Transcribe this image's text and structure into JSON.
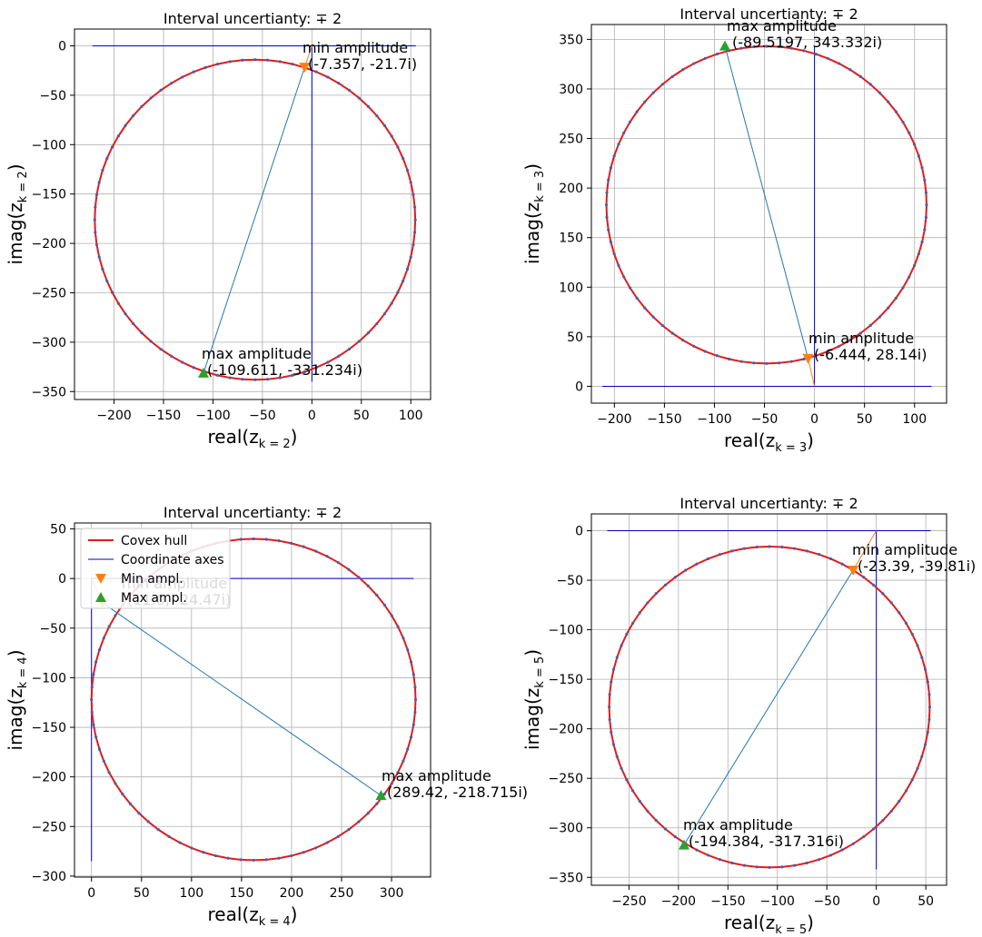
{
  "chart_data": [
    {
      "type": "line",
      "title": "Interval uncertianty: ∓ 2",
      "xlabel": "real(z_{k=2})",
      "xlabel_main": "real(z",
      "xlabel_sub": "k = 2",
      "ylabel_main": "imag(z",
      "ylabel_sub": "k = 2",
      "xlim": [
        -240,
        120
      ],
      "ylim": [
        -358,
        17
      ],
      "xticks": [
        -200,
        -150,
        -100,
        -50,
        0,
        50,
        100
      ],
      "yticks": [
        -350,
        -300,
        -250,
        -200,
        -150,
        -100,
        -50,
        0
      ],
      "circle": {
        "cx": -57.5,
        "cy": -176,
        "r": 162
      },
      "axes": {
        "x_from": -222,
        "x_to": 105,
        "y_from": -340,
        "y_to": 0
      },
      "min_point": {
        "x": -7.357,
        "y": -21.7
      },
      "max_point": {
        "x": -109.611,
        "y": -331.234
      },
      "min_label": [
        "min amplitude",
        "(-7.357, -21.7i)"
      ],
      "max_label": [
        "max amplitude",
        "(-109.611, -331.234i)"
      ],
      "min_label_anchor": {
        "x": -7.357,
        "y": -21.7
      },
      "max_label_anchor": {
        "x": -109.611,
        "y": -331.234
      }
    },
    {
      "type": "line",
      "title": "Interval uncertianty: ∓ 2",
      "xlabel": "real(z_{k=3})",
      "xlabel_main": "real(z",
      "xlabel_sub": "k = 3",
      "ylabel_main": "imag(z",
      "ylabel_sub": "k = 3",
      "xlim": [
        -223,
        132
      ],
      "ylim": [
        -17,
        365
      ],
      "xticks": [
        -200,
        -150,
        -100,
        -50,
        0,
        50,
        100
      ],
      "yticks": [
        0,
        50,
        100,
        150,
        200,
        250,
        300,
        350
      ],
      "circle": {
        "cx": -48,
        "cy": 183,
        "r": 160
      },
      "axes": {
        "x_from": -212,
        "x_to": 117,
        "y_from": 0,
        "y_to": 343
      },
      "min_point": {
        "x": -6.444,
        "y": 28.14
      },
      "max_point": {
        "x": -89.5197,
        "y": 343.332
      },
      "min_label": [
        "min amplitude",
        "(-6.444, 28.14i)"
      ],
      "max_label": [
        "max amplitude",
        "(-89.5197, 343.332i)"
      ],
      "min_label_anchor": {
        "x": -6.444,
        "y": 28.14
      },
      "max_label_anchor": {
        "x": -89.5197,
        "y": 343.332
      }
    },
    {
      "type": "line",
      "title": "Interval uncertianty: ∓ 2",
      "xlabel": "real(z_{k=4})",
      "xlabel_main": "real(z",
      "xlabel_sub": "k = 4",
      "ylabel_main": "imag(z",
      "ylabel_sub": "k = 4",
      "xlim": [
        -17,
        339
      ],
      "ylim": [
        -301,
        56
      ],
      "xticks": [
        0,
        50,
        100,
        150,
        200,
        250,
        300
      ],
      "yticks": [
        -300,
        -250,
        -200,
        -150,
        -100,
        -50,
        0,
        50
      ],
      "circle": {
        "cx": 162,
        "cy": -122,
        "r": 162
      },
      "axes": {
        "x_from": 0,
        "x_to": 322,
        "y_from": -285,
        "y_to": 0
      },
      "min_point": {
        "x": 11,
        "y": -24.47
      },
      "max_point": {
        "x": 289.42,
        "y": -218.715
      },
      "min_label": [
        "min amplitude",
        "(11.0, -24.47i)"
      ],
      "max_label": [
        "max amplitude",
        "(289.42, -218.715i)"
      ],
      "min_label_anchor": {
        "x": 11,
        "y": -24.47
      },
      "max_label_anchor": {
        "x": 289.42,
        "y": -218.715
      },
      "legend": [
        "Covex hull",
        "Coordinate axes",
        "Min ampl.",
        "Max ampl."
      ]
    },
    {
      "type": "line",
      "title": "Interval uncertianty: ∓ 2",
      "xlabel": "real(z_{k=5})",
      "xlabel_main": "real(z",
      "xlabel_sub": "k = 5",
      "ylabel_main": "imag(z",
      "ylabel_sub": "k = 5",
      "xlim": [
        -288,
        71
      ],
      "ylim": [
        -358,
        17
      ],
      "xticks": [
        -250,
        -200,
        -150,
        -100,
        -50,
        0,
        50
      ],
      "yticks": [
        -350,
        -300,
        -250,
        -200,
        -150,
        -100,
        -50,
        0
      ],
      "circle": {
        "cx": -108,
        "cy": -178,
        "r": 162
      },
      "axes": {
        "x_from": -272,
        "x_to": 55,
        "y_from": -342,
        "y_to": 0
      },
      "min_point": {
        "x": -23.39,
        "y": -39.81
      },
      "max_point": {
        "x": -194.384,
        "y": -317.316
      },
      "min_label": [
        "min amplitude",
        "(-23.39, -39.81i)"
      ],
      "max_label": [
        "max amplitude",
        "(-194.384, -317.316i)"
      ],
      "min_label_anchor": {
        "x": -23.39,
        "y": -39.81
      },
      "max_label_anchor": {
        "x": -194.384,
        "y": -317.316
      }
    }
  ],
  "colors": {
    "hull": "#e31a1c",
    "axes": "#0000cc",
    "link": "#1f77b4",
    "min_marker": "#ff7f0e",
    "max_marker": "#2ca02c",
    "grid": "#b0b0b0",
    "dots": "#4a5fa8"
  }
}
